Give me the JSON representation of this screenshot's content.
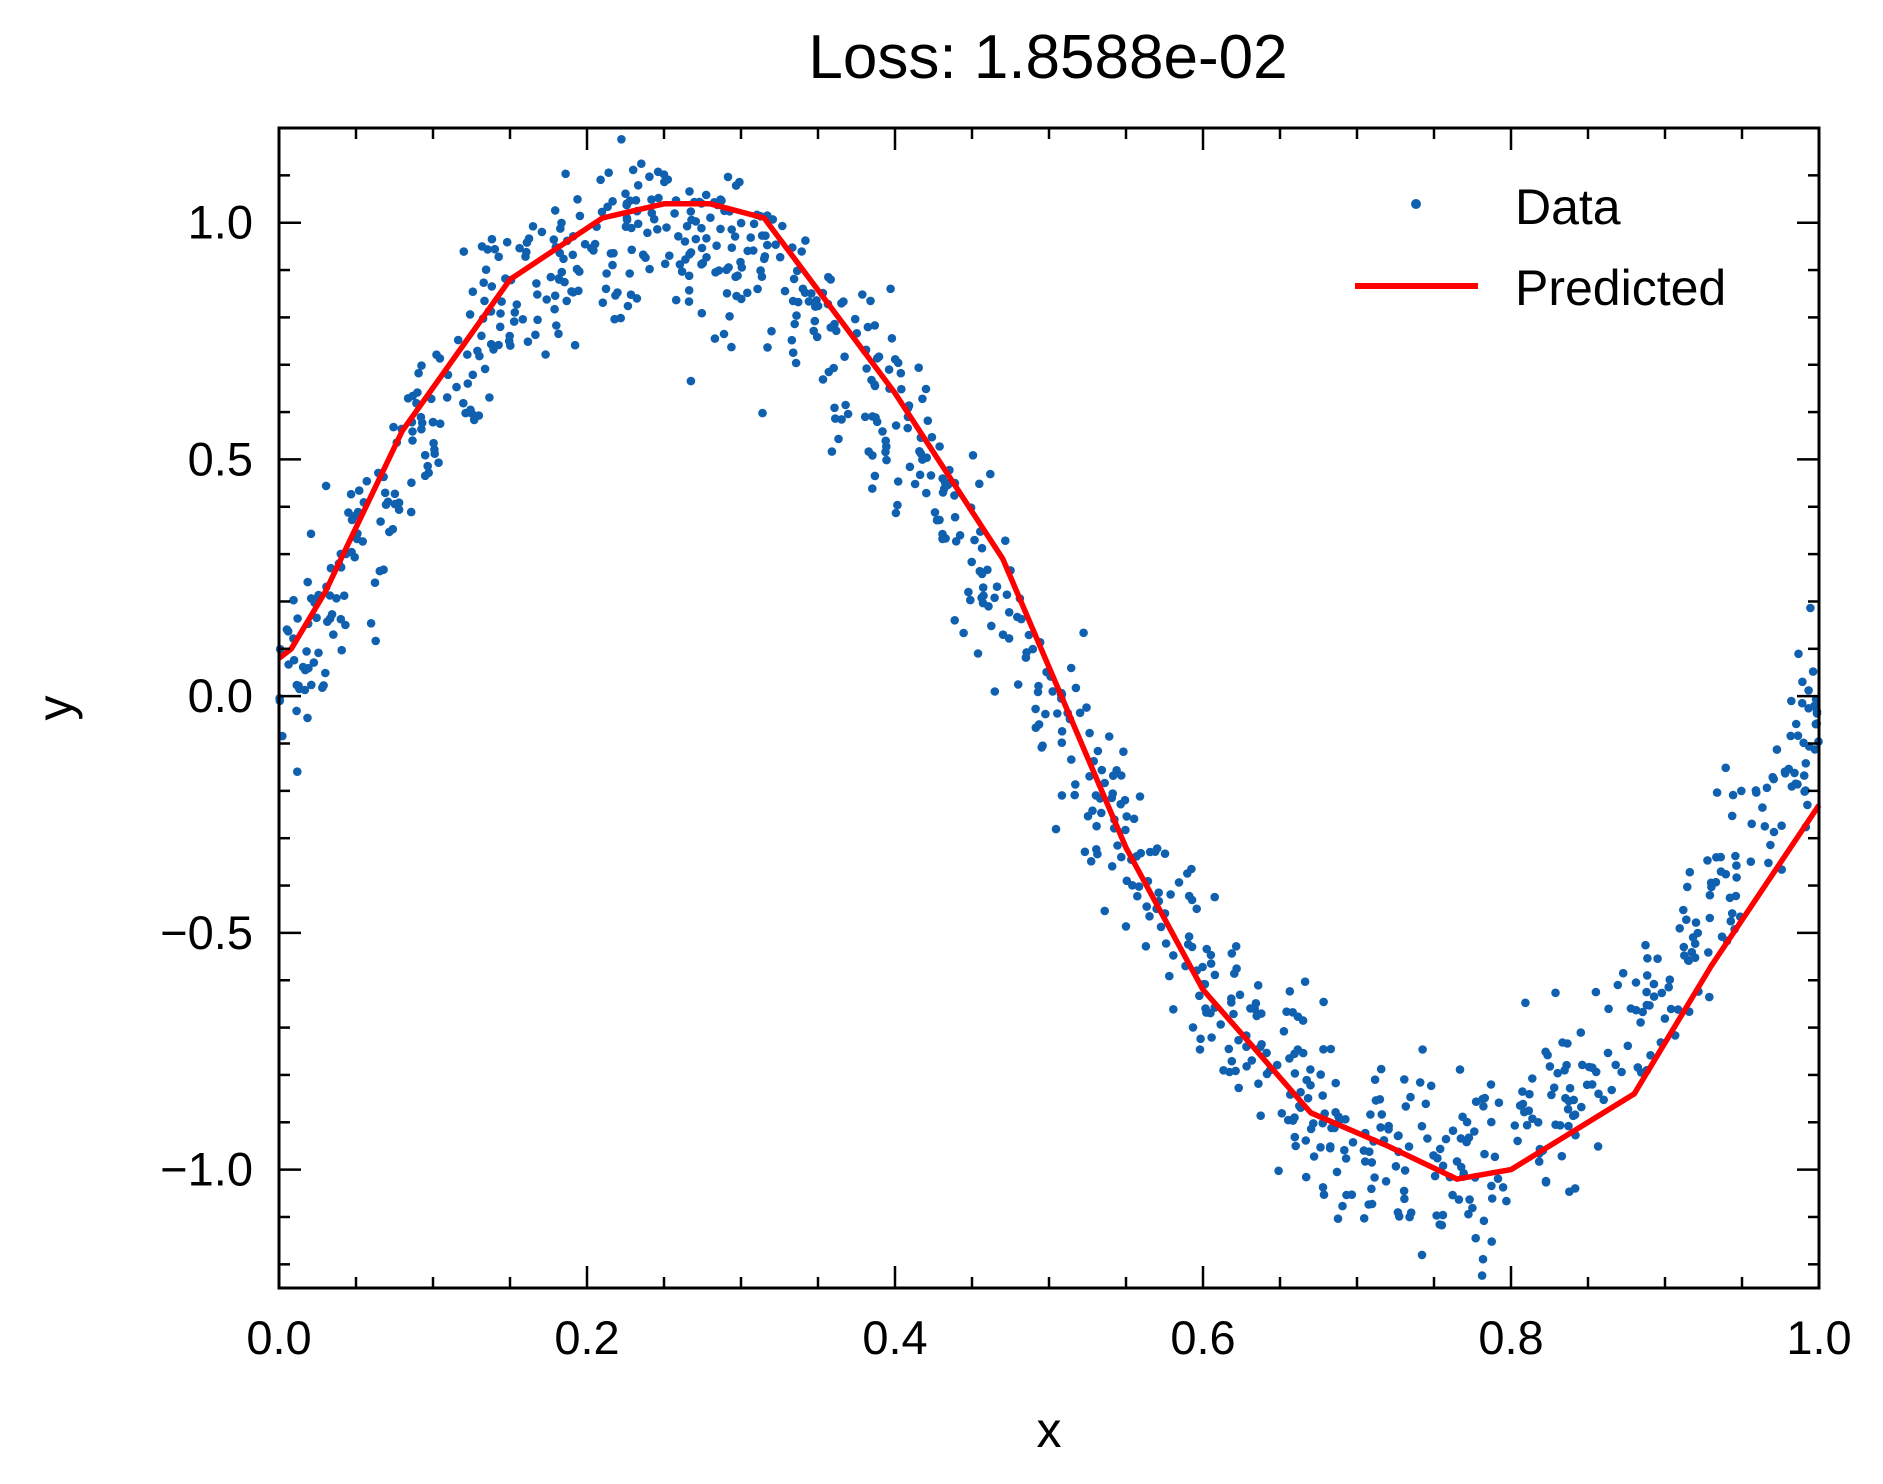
{
  "chart_data": {
    "type": "scatter",
    "title": "Loss: 1.8588e-02",
    "xlabel": "x",
    "ylabel": "y",
    "xlim": [
      0,
      1
    ],
    "ylim": [
      -1.25,
      1.2
    ],
    "grid": false,
    "legend_position": "top-right",
    "x_ticks": [
      0,
      0.2,
      0.4,
      0.6,
      0.8,
      1
    ],
    "x_tick_labels": [
      "0.0",
      "0.2",
      "0.4",
      "0.6",
      "0.8",
      "1.0"
    ],
    "y_ticks": [
      -1,
      -0.5,
      0,
      0.5,
      1
    ],
    "y_tick_labels": [
      "−1.0",
      "−0.5",
      "0.0",
      "0.5",
      "1.0"
    ],
    "series": [
      {
        "name": "Data",
        "kind": "scatter",
        "color": "#1060b0",
        "function": "sin(2πx)",
        "n_points": 1000,
        "noise_sd": 0.1
      },
      {
        "name": "Predicted",
        "kind": "line",
        "color": "#ff0000",
        "x": [
          0.0,
          0.008,
          0.03,
          0.08,
          0.15,
          0.21,
          0.25,
          0.28,
          0.315,
          0.4,
          0.47,
          0.55,
          0.6,
          0.67,
          0.72,
          0.765,
          0.8,
          0.88,
          0.93,
          1.0
        ],
        "y": [
          0.08,
          0.1,
          0.22,
          0.56,
          0.88,
          1.01,
          1.04,
          1.04,
          1.01,
          0.64,
          0.29,
          -0.32,
          -0.62,
          -0.88,
          -0.95,
          -1.02,
          -1.0,
          -0.84,
          -0.57,
          -0.23
        ]
      }
    ]
  }
}
